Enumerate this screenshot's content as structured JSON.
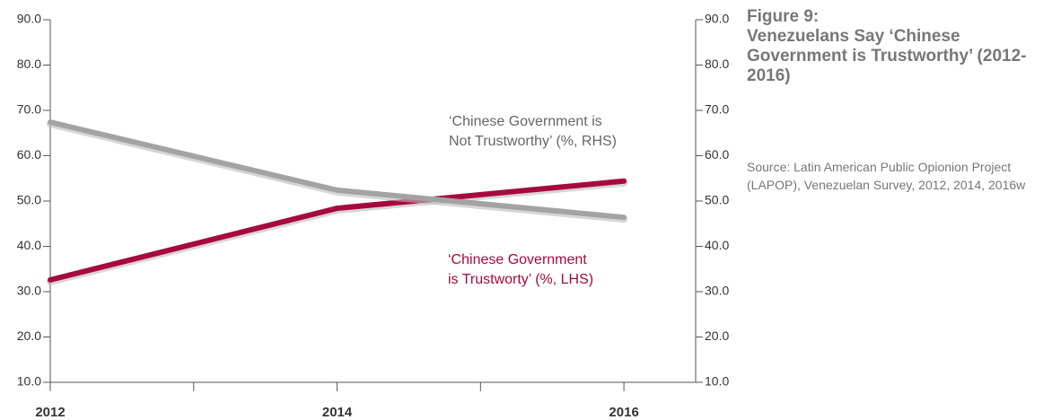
{
  "chart_data": {
    "type": "line",
    "figure_label": "Figure 9:",
    "title": "Venezuelans Say ‘Chinese Government is Trustworthy’ (2012-2016)",
    "source": "Source: Latin American Public Opionion Project (LAPOP), Venezuelan Survey, 2012, 2014, 2016w",
    "x": [
      2012,
      2014,
      2016
    ],
    "xlim": [
      2012,
      2016.5
    ],
    "xticks": [
      2012,
      2014,
      2016
    ],
    "xminorticks": [
      2013,
      2015
    ],
    "ylim": [
      10,
      90
    ],
    "yticks": [
      {
        "value": 10,
        "label": "10.0"
      },
      {
        "value": 20,
        "label": "20.0"
      },
      {
        "value": 30,
        "label": "30.0"
      },
      {
        "value": 40,
        "label": "40.0"
      },
      {
        "value": 50,
        "label": "50.0"
      },
      {
        "value": 60,
        "label": "60.0"
      },
      {
        "value": 70,
        "label": "70.0"
      },
      {
        "value": 80,
        "label": "80.0"
      },
      {
        "value": 90,
        "label": "90.0"
      }
    ],
    "y2lim": [
      10,
      90
    ],
    "y2ticks": [
      {
        "value": 10,
        "label": "10.0"
      },
      {
        "value": 20,
        "label": "20.0"
      },
      {
        "value": 30,
        "label": "30.0"
      },
      {
        "value": 40,
        "label": "40.0"
      },
      {
        "value": 50,
        "label": "50.0"
      },
      {
        "value": 60,
        "label": "60.0"
      },
      {
        "value": 70,
        "label": "70.0"
      },
      {
        "value": 80,
        "label": "80.0"
      },
      {
        "value": 90,
        "label": "90.0"
      }
    ],
    "series": [
      {
        "name": [
          "‘Chinese Government",
          "is Trustworty’ (%, LHS)"
        ],
        "color": "#a6093d",
        "values": [
          32.6,
          48.4,
          54.4
        ]
      },
      {
        "name": [
          "‘Chinese Government is",
          "Not Trustworthy’ (%, RHS)"
        ],
        "color": "#a3a3a3",
        "axis": "y2",
        "values": [
          67.4,
          52.4,
          46.4
        ]
      }
    ]
  }
}
